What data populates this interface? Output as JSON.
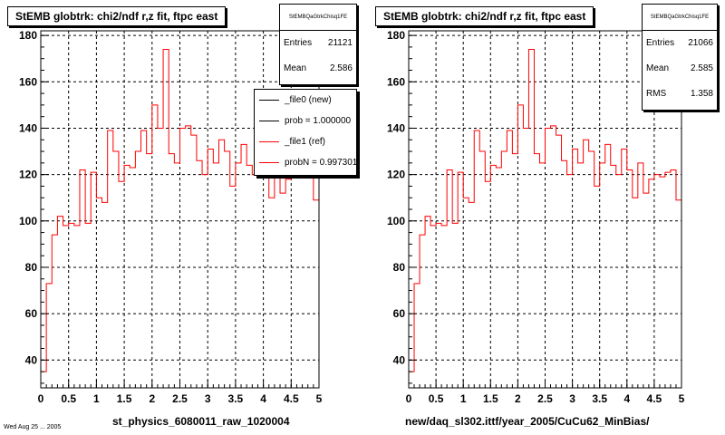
{
  "footer_text": "Wed Aug 25 ... 2005",
  "chart_data": [
    {
      "type": "bar",
      "style": "step-histogram",
      "title": "StEMB globtrk: chi2/ndf r,z fit, ftpc east",
      "xlabel": "st_physics_6080011_raw_1020004",
      "ylabel": "",
      "xlim": [
        0,
        5
      ],
      "ylim": [
        28,
        182
      ],
      "xticks": [
        "0",
        "0.5",
        "1",
        "1.5",
        "2",
        "2.5",
        "3",
        "3.5",
        "4",
        "4.5",
        "5"
      ],
      "yticks": [
        "40",
        "60",
        "80",
        "100",
        "120",
        "140",
        "160",
        "180"
      ],
      "grid": true,
      "bin_width": 0.1,
      "x_start": 0,
      "series": [
        {
          "color": "#ff0000",
          "values": [
            35,
            73,
            94,
            102,
            98,
            99,
            98,
            122,
            99,
            121,
            110,
            108,
            139,
            130,
            117,
            124,
            123,
            130,
            139,
            129,
            150,
            140,
            174,
            129,
            125,
            140,
            141,
            137,
            126,
            120,
            131,
            125,
            135,
            130,
            115,
            125,
            133,
            124,
            120,
            131,
            122,
            110,
            125,
            112,
            118,
            120,
            119,
            121,
            122,
            109,
            108
          ]
        }
      ],
      "stats": {
        "header": "StEMBQaGtrkChisq1FE",
        "entries_label": "Entries",
        "entries": "21121",
        "mean_label": "Mean",
        "mean": "2.586"
      },
      "legend": {
        "position": "top-right",
        "entries": [
          {
            "label": "_file0 (new)",
            "color": "#000000"
          },
          {
            "label": "prob = 1.000000",
            "color": "#000000"
          },
          {
            "label": "_file1 (ref)",
            "color": "#ff0000"
          },
          {
            "label": "probN = 0.997301",
            "color": "#ff0000"
          }
        ]
      }
    },
    {
      "type": "bar",
      "style": "step-histogram",
      "title": "StEMB globtrk: chi2/ndf r,z fit, ftpc east",
      "xlabel": "new/daq_sl302.ittf/year_2005/CuCu62_MinBias/",
      "ylabel": "",
      "xlim": [
        0,
        5
      ],
      "ylim": [
        28,
        182
      ],
      "xticks": [
        "0",
        "0.5",
        "1",
        "1.5",
        "2",
        "2.5",
        "3",
        "3.5",
        "4",
        "4.5",
        "5"
      ],
      "yticks": [
        "40",
        "60",
        "80",
        "100",
        "120",
        "140",
        "160",
        "180"
      ],
      "grid": true,
      "bin_width": 0.1,
      "x_start": 0,
      "series": [
        {
          "color": "#ff0000",
          "values": [
            35,
            73,
            94,
            102,
            98,
            99,
            98,
            122,
            99,
            121,
            110,
            108,
            139,
            130,
            117,
            124,
            123,
            130,
            139,
            129,
            150,
            140,
            174,
            129,
            125,
            140,
            141,
            137,
            126,
            120,
            131,
            125,
            135,
            130,
            115,
            125,
            133,
            124,
            120,
            131,
            122,
            110,
            125,
            112,
            118,
            120,
            119,
            121,
            122,
            109,
            108
          ]
        }
      ],
      "stats": {
        "header": "StEMBQaGtrkChisq1FE",
        "entries_label": "Entries",
        "entries": "21066",
        "mean_label": "Mean",
        "mean": "2.585",
        "rms_label": "RMS",
        "rms": "1.358"
      }
    }
  ]
}
